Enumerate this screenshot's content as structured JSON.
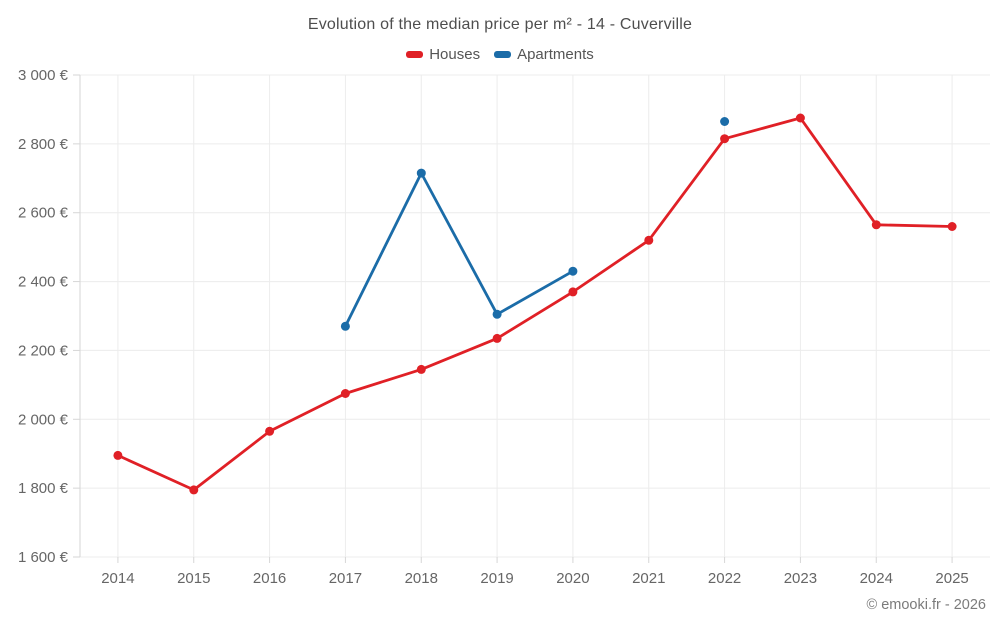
{
  "header": {
    "title": "Evolution of the median price per m² - 14 - Cuverville"
  },
  "footer": {
    "credit": "© emooki.fr - 2026"
  },
  "colors": {
    "houses": "#e02026",
    "apartments": "#1b6ca8",
    "gridline": "#ececec",
    "axis": "#d6d6d6",
    "tick_text": "#666666"
  },
  "chart_data": {
    "type": "line",
    "title": "Evolution of the median price per m² - 14 - Cuverville",
    "categories": [
      "2014",
      "2015",
      "2016",
      "2017",
      "2018",
      "2019",
      "2020",
      "2021",
      "2022",
      "2023",
      "2024",
      "2025"
    ],
    "series": [
      {
        "name": "Houses",
        "color": "#e02026",
        "values": [
          1895,
          1795,
          1965,
          2075,
          2145,
          2235,
          2370,
          2520,
          2815,
          2875,
          2565,
          2560
        ]
      },
      {
        "name": "Apartments",
        "color": "#1b6ca8",
        "values": [
          null,
          null,
          null,
          2270,
          2715,
          2305,
          2430,
          null,
          2865,
          null,
          null,
          null
        ]
      }
    ],
    "xlabel": "",
    "ylabel": "",
    "ylim": [
      1600,
      3000
    ],
    "ytick_step": 200,
    "ytick_labels": [
      "1 600 €",
      "1 800 €",
      "2 000 €",
      "2 200 €",
      "2 400 €",
      "2 600 €",
      "2 800 €",
      "3 000 €"
    ],
    "grid": true,
    "legend_position": "top"
  }
}
